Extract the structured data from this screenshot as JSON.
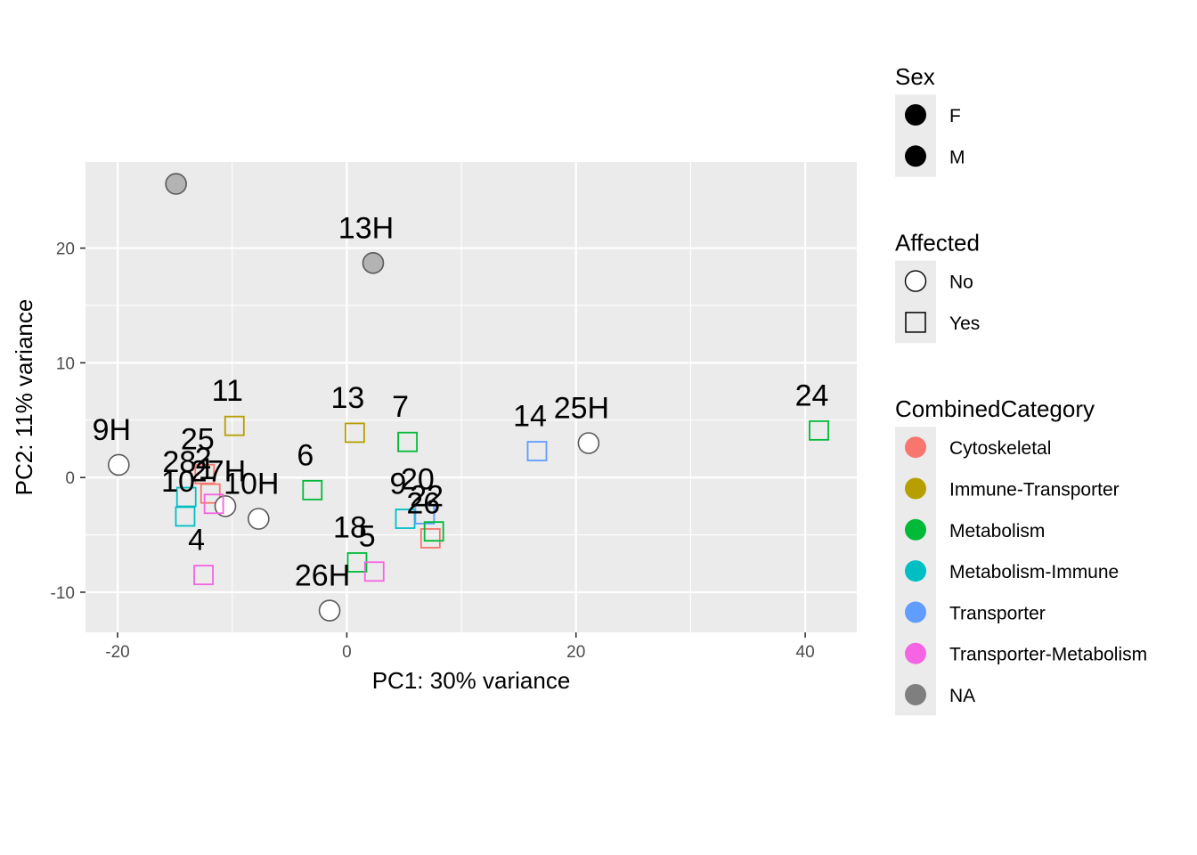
{
  "chart_data": {
    "type": "scatter",
    "xlabel": "PC1: 30% variance",
    "ylabel": "PC2: 11% variance",
    "xlim": [
      -22.8,
      44.5
    ],
    "ylim": [
      -13.5,
      27.5
    ],
    "x_ticks": [
      -20,
      0,
      20,
      40
    ],
    "x_tick_labels": [
      "-20",
      "0",
      "20",
      "40"
    ],
    "y_ticks": [
      -10,
      0,
      10,
      20
    ],
    "y_tick_labels": [
      "-10",
      "0",
      "10",
      "20"
    ],
    "grid": true,
    "legend_position": "right",
    "colors": {
      "Cytoskeletal": "#F8766D",
      "Immune-Transporter": "#B79F00",
      "Metabolism": "#00BA38",
      "Metabolism-Immune": "#00BFC4",
      "Transporter": "#619CFF",
      "Transporter-Metabolism": "#F564E3",
      "NA": "#7F7F7F"
    },
    "points": [
      {
        "label": "9H",
        "x": -19.9,
        "y": 1.1,
        "affected": "No",
        "category": "NA"
      },
      {
        "label": "",
        "x": -14.9,
        "y": 25.6,
        "affected": "No",
        "category": "NA",
        "fill": "grey"
      },
      {
        "label": "13H",
        "x": 2.3,
        "y": 18.7,
        "affected": "No",
        "category": "NA",
        "fill": "grey"
      },
      {
        "label": "11",
        "x": -9.8,
        "y": 4.5,
        "affected": "Yes",
        "category": "Immune-Transporter"
      },
      {
        "label": "13",
        "x": 0.7,
        "y": 3.9,
        "affected": "Yes",
        "category": "Immune-Transporter"
      },
      {
        "label": "7",
        "x": 5.3,
        "y": 3.1,
        "affected": "Yes",
        "category": "Metabolism"
      },
      {
        "label": "14",
        "x": 16.6,
        "y": 2.3,
        "affected": "Yes",
        "category": "Transporter"
      },
      {
        "label": "25H",
        "x": 21.1,
        "y": 3.0,
        "affected": "No",
        "category": "NA"
      },
      {
        "label": "24",
        "x": 41.2,
        "y": 4.1,
        "affected": "Yes",
        "category": "Metabolism"
      },
      {
        "label": "25",
        "x": -12.4,
        "y": 0.3,
        "affected": "Yes",
        "category": "Cytoskeletal"
      },
      {
        "label": "28",
        "x": -14.0,
        "y": -1.7,
        "affected": "Yes",
        "category": "Metabolism-Immune"
      },
      {
        "label": "2",
        "x": -11.9,
        "y": -1.4,
        "affected": "Yes",
        "category": "Cytoskeletal"
      },
      {
        "label": "27H",
        "x": -10.6,
        "y": -2.5,
        "affected": "No",
        "category": "NA"
      },
      {
        "label": "10",
        "x": -14.1,
        "y": -3.4,
        "affected": "Yes",
        "category": "Metabolism-Immune"
      },
      {
        "label": "1",
        "x": -11.6,
        "y": -2.3,
        "affected": "Yes",
        "category": "Transporter-Metabolism"
      },
      {
        "label": "10H",
        "x": -7.7,
        "y": -3.6,
        "affected": "No",
        "category": "NA"
      },
      {
        "label": "6",
        "x": -3.0,
        "y": -1.1,
        "affected": "Yes",
        "category": "Metabolism"
      },
      {
        "label": "9",
        "x": 5.1,
        "y": -3.6,
        "affected": "Yes",
        "category": "Metabolism-Immune"
      },
      {
        "label": "20",
        "x": 6.8,
        "y": -3.2,
        "affected": "Yes",
        "category": "Transporter"
      },
      {
        "label": "26",
        "x": 7.3,
        "y": -5.3,
        "affected": "Yes",
        "category": "Cytoskeletal"
      },
      {
        "label": "22",
        "x": 7.6,
        "y": -4.7,
        "affected": "Yes",
        "category": "Metabolism"
      },
      {
        "label": "4",
        "x": -12.5,
        "y": -8.5,
        "affected": "Yes",
        "category": "Transporter-Metabolism"
      },
      {
        "label": "18",
        "x": 0.9,
        "y": -7.4,
        "affected": "Yes",
        "category": "Metabolism"
      },
      {
        "label": "5",
        "x": 2.4,
        "y": -8.2,
        "affected": "Yes",
        "category": "Transporter-Metabolism"
      },
      {
        "label": "26H",
        "x": -1.5,
        "y": -11.6,
        "affected": "No",
        "category": "NA"
      }
    ],
    "legends": [
      {
        "title": "Sex",
        "kind": "sex",
        "items": [
          {
            "label": "F",
            "shape": "circle-filled",
            "color": "#000000"
          },
          {
            "label": "M",
            "shape": "circle-filled",
            "color": "#000000"
          }
        ]
      },
      {
        "title": "Affected",
        "kind": "affected",
        "items": [
          {
            "label": "No",
            "shape": "circle-open",
            "color": "#000000"
          },
          {
            "label": "Yes",
            "shape": "square-open",
            "color": "#000000"
          }
        ]
      },
      {
        "title": "CombinedCategory",
        "kind": "category",
        "items": [
          {
            "label": "Cytoskeletal",
            "shape": "circle-filled",
            "color": "#F8766D"
          },
          {
            "label": "Immune-Transporter",
            "shape": "circle-filled",
            "color": "#B79F00"
          },
          {
            "label": "Metabolism",
            "shape": "circle-filled",
            "color": "#00BA38"
          },
          {
            "label": "Metabolism-Immune",
            "shape": "circle-filled",
            "color": "#00BFC4"
          },
          {
            "label": "Transporter",
            "shape": "circle-filled",
            "color": "#619CFF"
          },
          {
            "label": "Transporter-Metabolism",
            "shape": "circle-filled",
            "color": "#F564E3"
          },
          {
            "label": "NA",
            "shape": "circle-filled",
            "color": "#7F7F7F"
          }
        ]
      }
    ]
  }
}
